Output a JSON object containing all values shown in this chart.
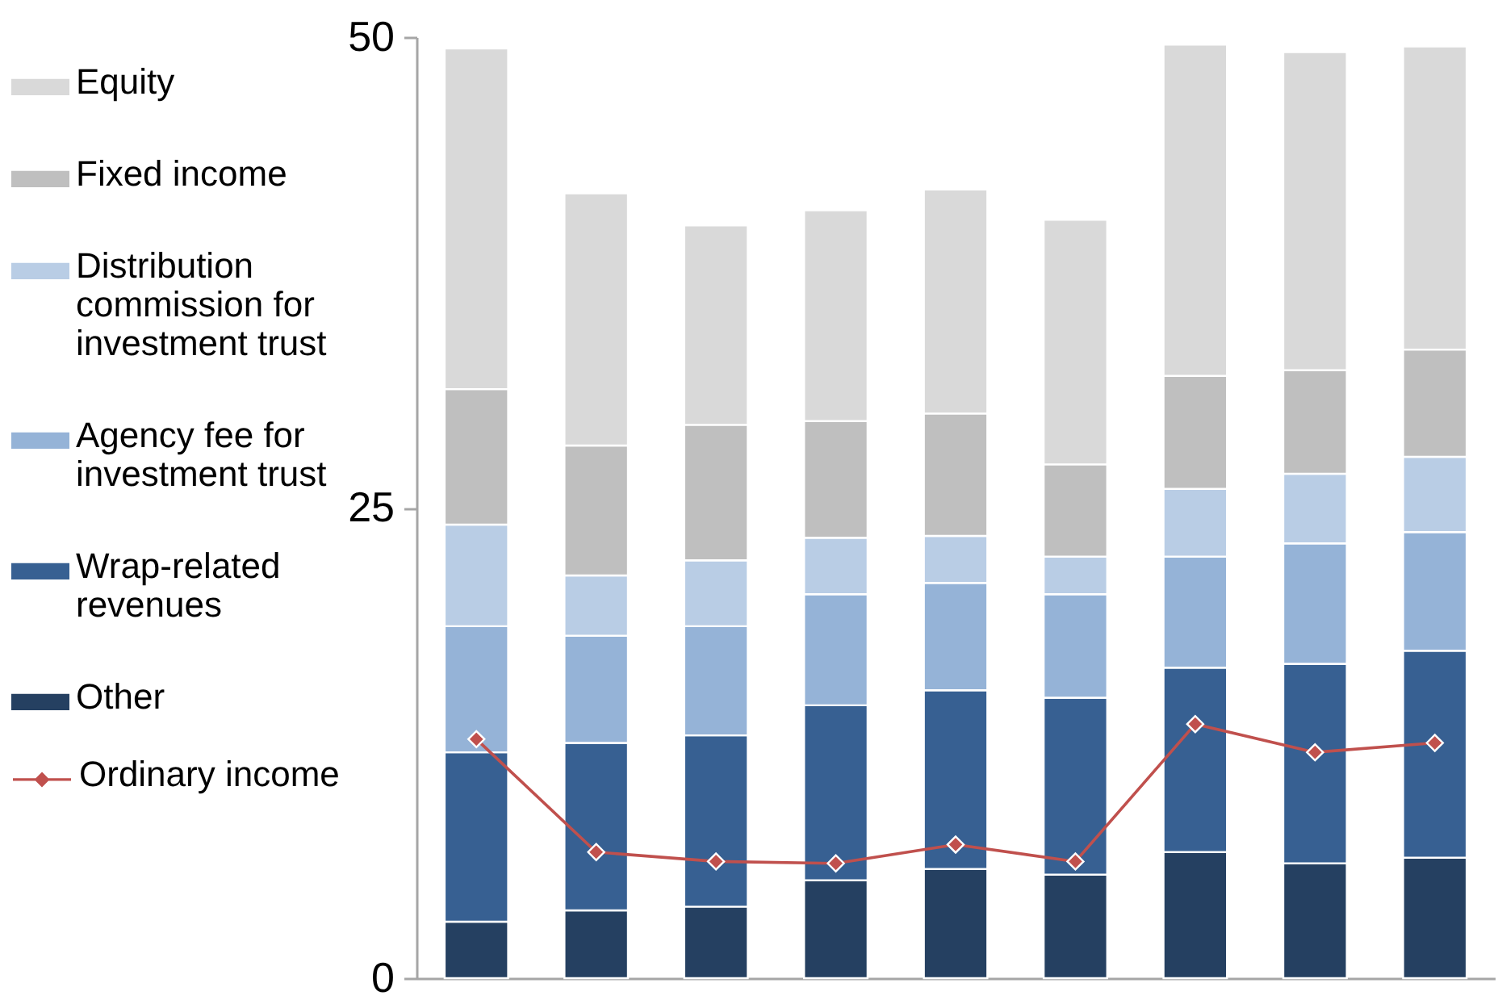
{
  "chart_data": {
    "type": "bar",
    "stacked": true,
    "categories": [
      null,
      null,
      null,
      null,
      null,
      null,
      null,
      null,
      null
    ],
    "series": [
      {
        "name": "Other",
        "color": "#254061",
        "values": [
          3.0,
          3.6,
          3.8,
          5.2,
          5.8,
          5.5,
          6.7,
          6.1,
          6.4
        ]
      },
      {
        "name": "Wrap-related revenues",
        "color": "#376092",
        "values": [
          9.0,
          8.9,
          9.1,
          9.3,
          9.5,
          9.4,
          9.8,
          10.6,
          11.0
        ]
      },
      {
        "name": "Agency fee for investment trust",
        "color": "#95b3d7",
        "values": [
          6.7,
          5.7,
          5.8,
          5.9,
          5.7,
          5.5,
          5.9,
          6.4,
          6.3
        ]
      },
      {
        "name": "Distribution commission for investment trust",
        "color": "#b9cde5",
        "values": [
          5.4,
          3.2,
          3.5,
          3.0,
          2.5,
          2.0,
          3.6,
          3.7,
          4.0
        ]
      },
      {
        "name": "Fixed income",
        "color": "#bfbfbf",
        "values": [
          7.2,
          6.9,
          7.2,
          6.2,
          6.5,
          4.9,
          6.0,
          5.5,
          5.7
        ]
      },
      {
        "name": "Equity",
        "color": "#d9d9d9",
        "values": [
          18.1,
          13.4,
          10.6,
          11.2,
          11.9,
          13.0,
          17.6,
          16.9,
          16.1
        ]
      },
      {
        "name": "Ordinary income",
        "type": "line",
        "color": "#c0504d",
        "values": [
          12.7,
          6.7,
          6.2,
          6.1,
          7.1,
          6.2,
          13.5,
          12.0,
          12.5
        ]
      }
    ],
    "ylim": [
      0,
      50
    ],
    "yticks": [
      0,
      25,
      50
    ],
    "grid": false,
    "legend": "left",
    "marker": "diamond",
    "line_style": "solid"
  }
}
